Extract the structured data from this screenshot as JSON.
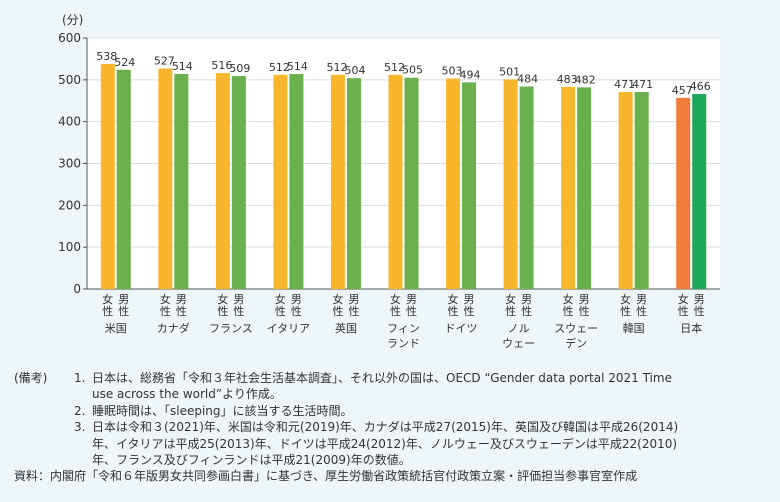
{
  "chart_data": {
    "type": "bar",
    "y_unit": "(分)",
    "ylim": [
      0,
      600
    ],
    "yticks": [
      "0",
      "100",
      "200",
      "300",
      "400",
      "500",
      "600"
    ],
    "series": [
      {
        "name": "女性",
        "color": "#f8b62d"
      },
      {
        "name": "男性",
        "color": "#6ab04c"
      }
    ],
    "groups": [
      {
        "country": [
          "米国"
        ],
        "female": 538,
        "male": 524,
        "female_label": [
          "女",
          "性"
        ],
        "male_label": [
          "男",
          "性"
        ]
      },
      {
        "country": [
          "カナダ"
        ],
        "female": 527,
        "male": 514,
        "female_label": [
          "女",
          "性"
        ],
        "male_label": [
          "男",
          "性"
        ]
      },
      {
        "country": [
          "フランス"
        ],
        "female": 516,
        "male": 509,
        "female_label": [
          "女",
          "性"
        ],
        "male_label": [
          "男",
          "性"
        ]
      },
      {
        "country": [
          "イタリア"
        ],
        "female": 512,
        "male": 514,
        "female_label": [
          "女",
          "性"
        ],
        "male_label": [
          "男",
          "性"
        ]
      },
      {
        "country": [
          "英国"
        ],
        "female": 512,
        "male": 504,
        "female_label": [
          "女",
          "性"
        ],
        "male_label": [
          "男",
          "性"
        ]
      },
      {
        "country": [
          "フィン",
          "ランド"
        ],
        "female": 512,
        "male": 505,
        "female_label": [
          "女",
          "性"
        ],
        "male_label": [
          "男",
          "性"
        ]
      },
      {
        "country": [
          "ドイツ"
        ],
        "female": 503,
        "male": 494,
        "female_label": [
          "女",
          "性"
        ],
        "male_label": [
          "男",
          "性"
        ]
      },
      {
        "country": [
          "ノル",
          "ウェー"
        ],
        "female": 501,
        "male": 484,
        "female_label": [
          "女",
          "性"
        ],
        "male_label": [
          "男",
          "性"
        ]
      },
      {
        "country": [
          "スウェー",
          "デン"
        ],
        "female": 483,
        "male": 482,
        "female_label": [
          "女",
          "性"
        ],
        "male_label": [
          "男",
          "性"
        ]
      },
      {
        "country": [
          "韓国"
        ],
        "female": 471,
        "male": 471,
        "female_label": [
          "女",
          "性"
        ],
        "male_label": [
          "男",
          "性"
        ]
      },
      {
        "country": [
          "日本"
        ],
        "female": 457,
        "male": 466,
        "female_label": [
          "女",
          "性"
        ],
        "male_label": [
          "男",
          "性"
        ],
        "highlight": true
      }
    ],
    "highlight_colors": {
      "female": "#ee7d3b",
      "male": "#1ea65a"
    }
  },
  "notes": {
    "label": "(備考)",
    "items": [
      {
        "num": "1.",
        "lines": [
          "日本は、総務省「令和３年社会生活基本調査」、それ以外の国は、OECD “Gender data portal 2021 Time",
          "use across the world”より作成。"
        ]
      },
      {
        "num": "2.",
        "lines": [
          "睡眠時間は、「sleeping」に該当する生活時間。"
        ]
      },
      {
        "num": "3.",
        "lines": [
          "日本は令和３(2021)年、米国は令和元(2019)年、カナダは平成27(2015)年、英国及び韓国は平成26(2014)",
          "年、イタリアは平成25(2013)年、ドイツは平成24(2012)年、ノルウェー及びスウェーデンは平成22(2010)",
          "年、フランス及びフィンランドは平成21(2009)年の数値。"
        ]
      }
    ],
    "source": "資料：内閣府「令和６年版男女共同参画白書」に基づき、厚生労働省政策統括官付政策立案・評価担当参事官室作成"
  }
}
